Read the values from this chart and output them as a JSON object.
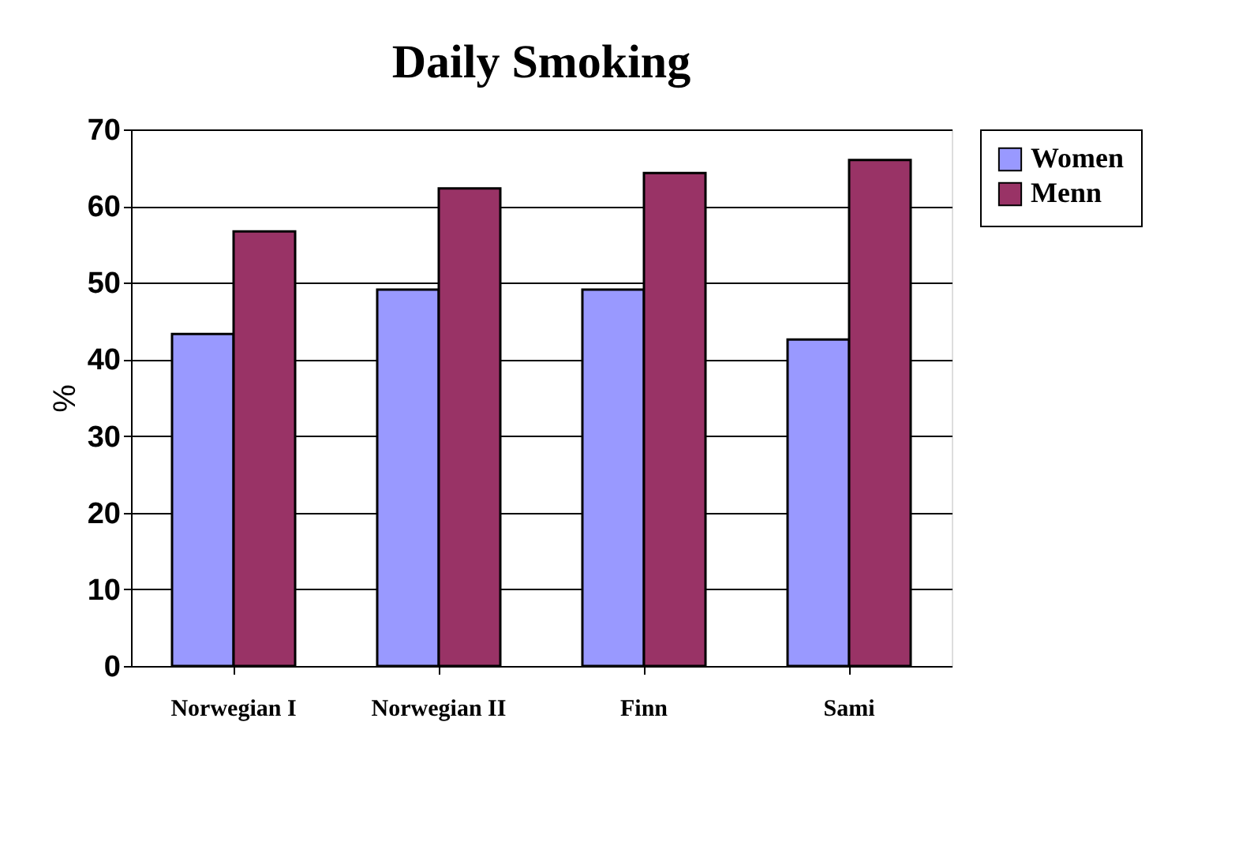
{
  "chart_data": {
    "type": "bar",
    "title": "Daily Smoking",
    "ylabel": "%",
    "categories": [
      "Norwegian I",
      "Norwegian II",
      "Finn",
      "Sami"
    ],
    "series": [
      {
        "name": "Women",
        "color": "#9999ff",
        "values": [
          43.3,
          49.1,
          49.1,
          42.6
        ]
      },
      {
        "name": "Menn",
        "color": "#993366",
        "values": [
          56.7,
          62.3,
          64.3,
          66.0
        ]
      }
    ],
    "ylim": [
      0,
      70
    ],
    "yticks": [
      0,
      10,
      20,
      30,
      40,
      50,
      60,
      70
    ],
    "grid": "y",
    "legend": "right"
  }
}
